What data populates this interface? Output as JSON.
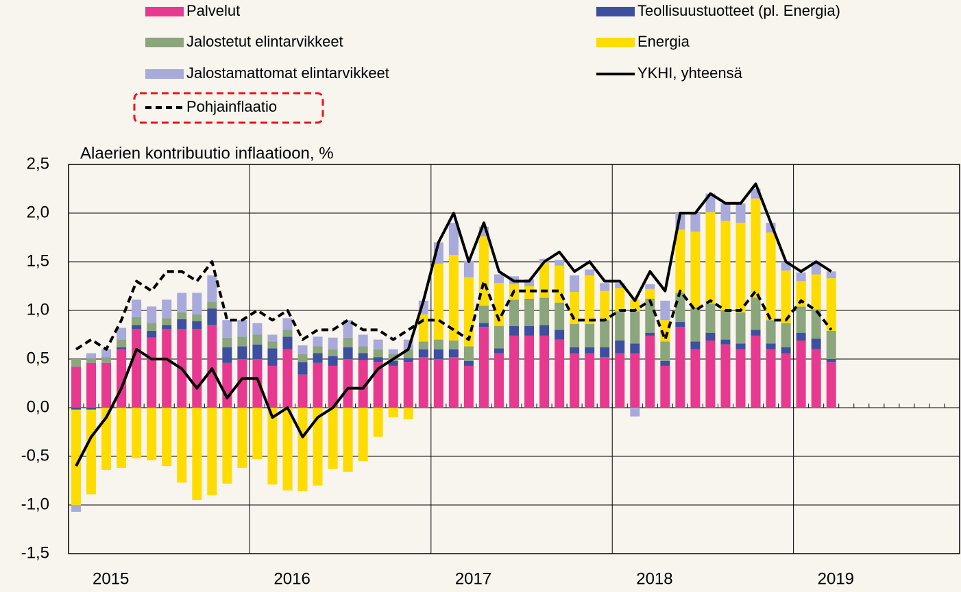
{
  "chart_data": {
    "type": "bar",
    "stacked": true,
    "y_label": "Alaerien kontribuutio inflaatioon, %",
    "categories": [
      "2015",
      null,
      null,
      null,
      null,
      null,
      null,
      null,
      null,
      null,
      null,
      null,
      "2016",
      null,
      null,
      null,
      null,
      null,
      null,
      null,
      null,
      null,
      null,
      null,
      "2017",
      null,
      null,
      null,
      null,
      null,
      null,
      null,
      null,
      null,
      null,
      null,
      "2018",
      null,
      null,
      null,
      null,
      null,
      null,
      null,
      null,
      null,
      null,
      null,
      "2019",
      null,
      null,
      null,
      null,
      null,
      null,
      null,
      null,
      null,
      null
    ],
    "ylim": [
      -1.5,
      2.5
    ],
    "yticks": [
      {
        "value": -1.5,
        "label": "-1,5"
      },
      {
        "value": -1,
        "label": "-1,0"
      },
      {
        "value": -0.5,
        "label": "-0,5"
      },
      {
        "value": 0,
        "label": "0,0"
      },
      {
        "value": 0.5,
        "label": "0,5"
      },
      {
        "value": 1,
        "label": "1,0"
      },
      {
        "value": 1.5,
        "label": "1,5"
      },
      {
        "value": 2,
        "label": "2,0"
      },
      {
        "value": 2.5,
        "label": "2,5"
      }
    ],
    "grid": true,
    "series": [
      {
        "name": "Palvelut",
        "color": "#e6398f",
        "values": [
          0.42,
          0.46,
          0.46,
          0.6,
          0.81,
          0.72,
          0.81,
          0.81,
          0.81,
          0.85,
          0.46,
          0.5,
          0.5,
          0.43,
          0.6,
          0.34,
          0.46,
          0.43,
          0.5,
          0.49,
          0.47,
          0.43,
          0.47,
          0.52,
          0.5,
          0.52,
          0.43,
          0.83,
          0.56,
          0.74,
          0.74,
          0.74,
          0.7,
          0.56,
          0.56,
          0.52,
          0.56,
          0.56,
          0.74,
          0.43,
          0.83,
          0.6,
          0.69,
          0.65,
          0.6,
          0.74,
          0.6,
          0.56,
          0.69,
          0.6,
          0.47,
          null,
          null,
          null,
          null,
          null,
          null,
          null,
          null
        ]
      },
      {
        "name": "Teollisuustuotteet (pl. Energia)",
        "color": "#3d4f9f",
        "values": [
          -0.02,
          -0.02,
          0,
          0.02,
          0.04,
          0.07,
          0.04,
          0.1,
          0.08,
          0.17,
          0.16,
          0.13,
          0.15,
          0.18,
          0.13,
          0.13,
          0.1,
          0.1,
          0.12,
          0.07,
          0.05,
          0.05,
          0.04,
          0.08,
          0.1,
          0.08,
          0.05,
          0.04,
          0.05,
          0.1,
          0.1,
          0.11,
          0.1,
          0.06,
          0.06,
          0.1,
          0.13,
          0.1,
          0.03,
          0.05,
          0.05,
          0.08,
          0.08,
          0.05,
          0.06,
          0.06,
          0.06,
          0.06,
          0.08,
          0.11,
          0.03,
          null,
          null,
          null,
          null,
          null,
          null,
          null,
          null
        ]
      },
      {
        "name": "Jalostetut elintarvikkeet",
        "color": "#8ba57c",
        "values": [
          0.08,
          0.05,
          0.06,
          0.08,
          0.08,
          0.08,
          0.07,
          0.07,
          0.07,
          0.07,
          0.1,
          0.1,
          0.1,
          0.07,
          0.07,
          0.08,
          0.07,
          0.07,
          0.1,
          0.07,
          0.08,
          0.07,
          0.09,
          0.08,
          0.1,
          0.09,
          0.15,
          0.18,
          0.23,
          0.27,
          0.28,
          0.28,
          0.28,
          0.24,
          0.24,
          0.28,
          0.3,
          0.33,
          0.35,
          0.2,
          0.3,
          0.35,
          0.3,
          0.3,
          0.32,
          0.33,
          0.24,
          0.25,
          0.27,
          0.3,
          0.29,
          null,
          null,
          null,
          null,
          null,
          null,
          null,
          null
        ]
      },
      {
        "name": "Energia",
        "color": "#ffdc00",
        "values": [
          -0.98,
          -0.87,
          -0.64,
          -0.62,
          -0.52,
          -0.54,
          -0.6,
          -0.77,
          -0.95,
          -0.9,
          -0.78,
          -0.62,
          -0.53,
          -0.79,
          -0.85,
          -0.86,
          -0.8,
          -0.63,
          -0.66,
          -0.55,
          -0.3,
          -0.1,
          -0.12,
          0.28,
          0.78,
          0.88,
          0.71,
          0.71,
          0.44,
          0.16,
          0.13,
          0.36,
          0.38,
          0.33,
          0.5,
          0.3,
          0.24,
          0.12,
          0.1,
          0.22,
          0.65,
          0.78,
          0.94,
          0.92,
          0.92,
          1.02,
          0.9,
          0.54,
          0.26,
          0.36,
          0.54,
          null,
          null,
          null,
          null,
          null,
          null,
          null,
          null
        ]
      },
      {
        "name": "Jalostamattomat elintarvikkeet",
        "color": "#a8aadb",
        "values": [
          -0.07,
          0.05,
          0.08,
          0.12,
          0.18,
          0.17,
          0.19,
          0.2,
          0.22,
          0.27,
          0.18,
          0.17,
          0.12,
          0.07,
          0.12,
          0.09,
          0.1,
          0.12,
          0.18,
          0.12,
          0.1,
          0.05,
          0.1,
          0.14,
          0.22,
          0.33,
          0.17,
          0.1,
          0.09,
          0.08,
          0.07,
          0.04,
          0.06,
          0.17,
          0.06,
          0.08,
          0.05,
          -0.09,
          0.05,
          0.2,
          0.17,
          0.19,
          0.19,
          0.18,
          0.2,
          0.1,
          0.1,
          0.09,
          0.09,
          0.14,
          0.07,
          null,
          null,
          null,
          null,
          null,
          null,
          null,
          null
        ]
      },
      {
        "name": "YKHI, yhteensä",
        "color": "#000000",
        "type": "line",
        "values": [
          -0.6,
          -0.3,
          -0.1,
          0.2,
          0.6,
          0.5,
          0.5,
          0.4,
          0.2,
          0.4,
          0.1,
          0.3,
          0.3,
          -0.1,
          0,
          -0.3,
          -0.1,
          0,
          0.2,
          0.2,
          0.4,
          0.5,
          0.6,
          1.1,
          1.7,
          2.0,
          1.5,
          1.9,
          1.4,
          1.3,
          1.3,
          1.5,
          1.6,
          1.4,
          1.5,
          1.3,
          1.3,
          1.1,
          1.4,
          1.2,
          2.0,
          2.0,
          2.2,
          2.1,
          2.1,
          2.3,
          1.9,
          1.5,
          1.4,
          1.5,
          1.4,
          null,
          null,
          null,
          null,
          null,
          null,
          null,
          null
        ]
      },
      {
        "name": "Pohjainflaatio",
        "color": "#000000",
        "type": "line",
        "dashed": true,
        "values": [
          0.6,
          0.7,
          0.6,
          0.9,
          1.3,
          1.2,
          1.4,
          1.4,
          1.3,
          1.5,
          0.9,
          0.9,
          1.0,
          0.9,
          1.0,
          0.7,
          0.8,
          0.8,
          0.9,
          0.8,
          0.8,
          0.7,
          0.8,
          0.9,
          0.9,
          0.8,
          0.7,
          1.3,
          0.9,
          1.2,
          1.2,
          1.2,
          1.2,
          0.9,
          0.9,
          0.9,
          1.0,
          1.0,
          1.1,
          0.7,
          1.2,
          1.0,
          1.1,
          1.0,
          1.0,
          1.2,
          0.9,
          0.9,
          1.1,
          1.0,
          0.8,
          null,
          null,
          null,
          null,
          null,
          null,
          null,
          null
        ]
      }
    ]
  }
}
